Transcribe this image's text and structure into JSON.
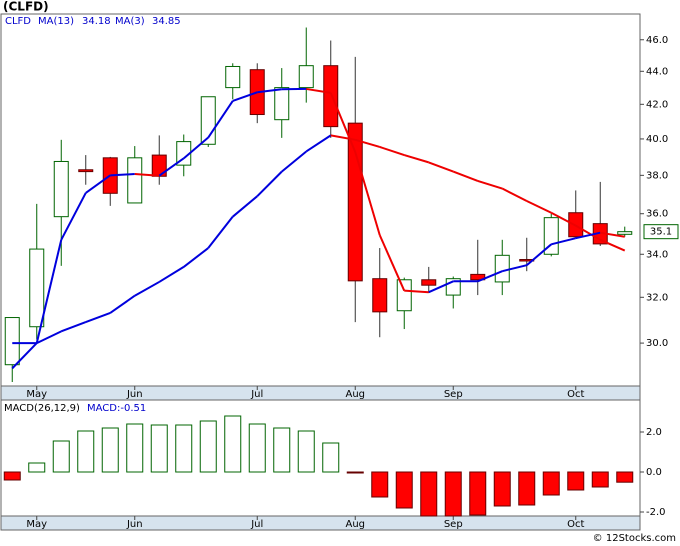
{
  "chart_data": [
    {
      "type": "candlestick",
      "title": "(CLFD)",
      "ticker": "CLFD",
      "log_scale": true,
      "categories": [
        null,
        null,
        null,
        null,
        null,
        null,
        null,
        null,
        null,
        null,
        null,
        null,
        null,
        null,
        null,
        null,
        null,
        null,
        null,
        null,
        null,
        null,
        null,
        null,
        null,
        null
      ],
      "open": [
        29.1,
        30.7,
        35.85,
        38.3,
        38.95,
        36.55,
        39.1,
        38.55,
        39.7,
        43.0,
        44.1,
        41.1,
        43.0,
        44.35,
        40.9,
        32.85,
        31.4,
        32.8,
        32.1,
        33.05,
        32.7,
        33.75,
        34.0,
        36.05,
        35.5,
        34.97
      ],
      "high": [
        31.1,
        36.5,
        39.95,
        39.1,
        39.0,
        39.6,
        40.2,
        40.25,
        42.45,
        44.5,
        44.5,
        44.2,
        46.8,
        45.95,
        44.9,
        34.3,
        32.9,
        33.4,
        32.95,
        34.7,
        34.7,
        34.8,
        36.0,
        37.2,
        37.65,
        35.35
      ],
      "low": [
        28.4,
        30.15,
        33.45,
        37.5,
        36.4,
        36.55,
        37.5,
        37.95,
        39.55,
        42.3,
        40.9,
        40.06,
        42.1,
        40.06,
        30.9,
        30.25,
        30.6,
        32.2,
        31.5,
        32.1,
        32.1,
        33.2,
        33.9,
        34.8,
        34.4,
        34.85
      ],
      "close": [
        31.1,
        34.25,
        38.75,
        38.2,
        37.05,
        38.95,
        37.95,
        39.85,
        42.45,
        44.3,
        41.4,
        43.0,
        44.35,
        40.7,
        32.75,
        31.35,
        32.8,
        32.55,
        32.85,
        32.8,
        33.95,
        33.7,
        35.8,
        34.85,
        34.5,
        35.1
      ],
      "up_color": "#006400",
      "down_color": "#ff0000",
      "last_label": "35.1",
      "series": [
        {
          "name": "MA(13)",
          "value_label": "34.18",
          "up_color": "#0000dd",
          "down_color": "#ee0000",
          "values": [
            28.95,
            30.0,
            30.5,
            30.9,
            31.3,
            32.07,
            32.7,
            33.4,
            34.3,
            35.85,
            36.9,
            38.2,
            39.3,
            40.2,
            39.95,
            39.55,
            39.1,
            38.7,
            38.2,
            37.7,
            37.3,
            36.65,
            36.05,
            35.4,
            34.7,
            34.18
          ]
        },
        {
          "name": "MA(3)",
          "value_label": "34.85",
          "up_color": "#0000dd",
          "down_color": "#ee0000",
          "values": [
            30.0,
            30.0,
            34.7,
            37.07,
            38.0,
            38.07,
            37.98,
            38.92,
            40.08,
            42.2,
            42.72,
            42.9,
            42.92,
            42.68,
            39.27,
            34.93,
            32.3,
            32.23,
            32.73,
            32.73,
            33.2,
            33.48,
            34.48,
            34.78,
            35.05,
            34.85
          ]
        }
      ],
      "ylim": [
        28.24,
        47.7
      ],
      "yticks": [
        {
          "value": 30,
          "label": "30.0"
        },
        {
          "value": 32,
          "label": "32.0"
        },
        {
          "value": 34,
          "label": "34.0"
        },
        {
          "value": 36,
          "label": "36.0"
        },
        {
          "value": 38,
          "label": "38.0"
        },
        {
          "value": 40,
          "label": "40.0"
        },
        {
          "value": 42,
          "label": "42.0"
        },
        {
          "value": 44,
          "label": "44.0"
        },
        {
          "value": 46,
          "label": "46.0"
        }
      ],
      "xticks": [
        {
          "value": 1,
          "label": "May"
        },
        {
          "value": 5,
          "label": "Jun"
        },
        {
          "value": 10,
          "label": "Jul"
        },
        {
          "value": 14,
          "label": "Aug"
        },
        {
          "value": 18,
          "label": "Sep"
        },
        {
          "value": 23,
          "label": "Oct"
        }
      ]
    },
    {
      "type": "bar",
      "title": "MACD(26,12,9)",
      "value_label": "MACD:-0.51",
      "up_color": "#006400",
      "down_color": "#ff0000",
      "values": [
        -0.4,
        0.45,
        1.55,
        2.05,
        2.2,
        2.4,
        2.35,
        2.35,
        2.55,
        2.8,
        2.4,
        2.2,
        2.05,
        1.45,
        -0.05,
        -1.25,
        -1.8,
        -2.2,
        -2.2,
        -2.15,
        -1.7,
        -1.65,
        -1.15,
        -0.9,
        -0.75,
        -0.51
      ],
      "ylim": [
        -2.2,
        3.6
      ],
      "yticks": [
        {
          "value": -2,
          "label": "-2.0"
        },
        {
          "value": 0,
          "label": "0.0"
        },
        {
          "value": 2,
          "label": "2.0"
        }
      ],
      "xticks": [
        {
          "value": 1,
          "label": "May"
        },
        {
          "value": 5,
          "label": "Jun"
        },
        {
          "value": 10,
          "label": "Jul"
        },
        {
          "value": 14,
          "label": "Aug"
        },
        {
          "value": 18,
          "label": "Sep"
        },
        {
          "value": 23,
          "label": "Oct"
        }
      ]
    }
  ],
  "footer": "© 12Stocks.com"
}
